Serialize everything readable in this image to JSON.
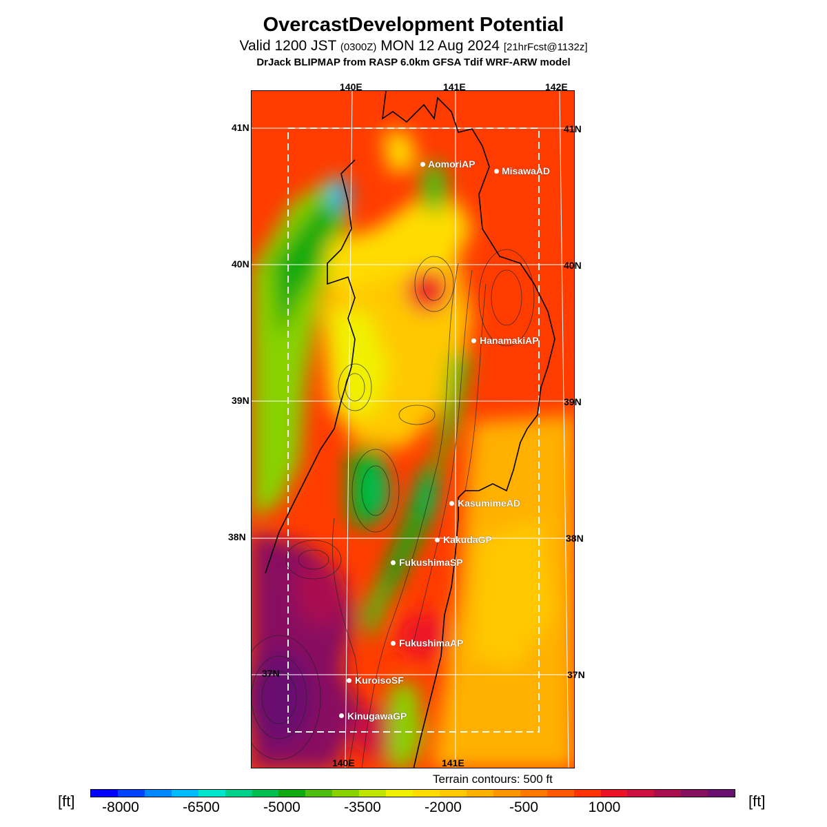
{
  "title": "OvercastDevelopment Potential",
  "subtitle": {
    "pre": "Valid 1200 JST ",
    "small1": "(0300Z)",
    "mid": " MON 12 Aug 2024 ",
    "small2": "[21hrFcst@1132z]"
  },
  "model_line": "DrJack BLIPMAP from RASP 6.0km GFSA Tdif WRF-ARW model",
  "map": {
    "lon_labels_top": [
      "140E",
      "141E",
      "142E"
    ],
    "lon_labels_bottom": [
      "140E",
      "141E"
    ],
    "lat_labels": [
      "41N",
      "40N",
      "39N",
      "38N",
      "37N"
    ],
    "stations": [
      {
        "name": "AomoriAP"
      },
      {
        "name": "MisawaAD"
      },
      {
        "name": "HanamakiAP"
      },
      {
        "name": "KasumimeAD"
      },
      {
        "name": "KakudaGP"
      },
      {
        "name": "FukushimaSP"
      },
      {
        "name": "FukushimaAP"
      },
      {
        "name": "KuroisoSF"
      },
      {
        "name": "KinugawaGP"
      }
    ],
    "terrain_note": "Terrain contours: 500 ft"
  },
  "colorbar": {
    "unit": "[ft]",
    "tick_labels": [
      "-8000",
      "-6500",
      "-5000",
      "-3500",
      "-2000",
      "-500",
      "1000"
    ],
    "colors": [
      "#0000ff",
      "#0044ff",
      "#0088ff",
      "#00bbff",
      "#00e5cc",
      "#00d28c",
      "#00be50",
      "#10aa10",
      "#50be10",
      "#88d200",
      "#c0e600",
      "#f0f000",
      "#ffdc00",
      "#ffc800",
      "#ffb000",
      "#ff9600",
      "#ff7800",
      "#ff5a00",
      "#ff3200",
      "#ee1428",
      "#cc1040",
      "#aa1050",
      "#881060",
      "#6a1070"
    ]
  }
}
